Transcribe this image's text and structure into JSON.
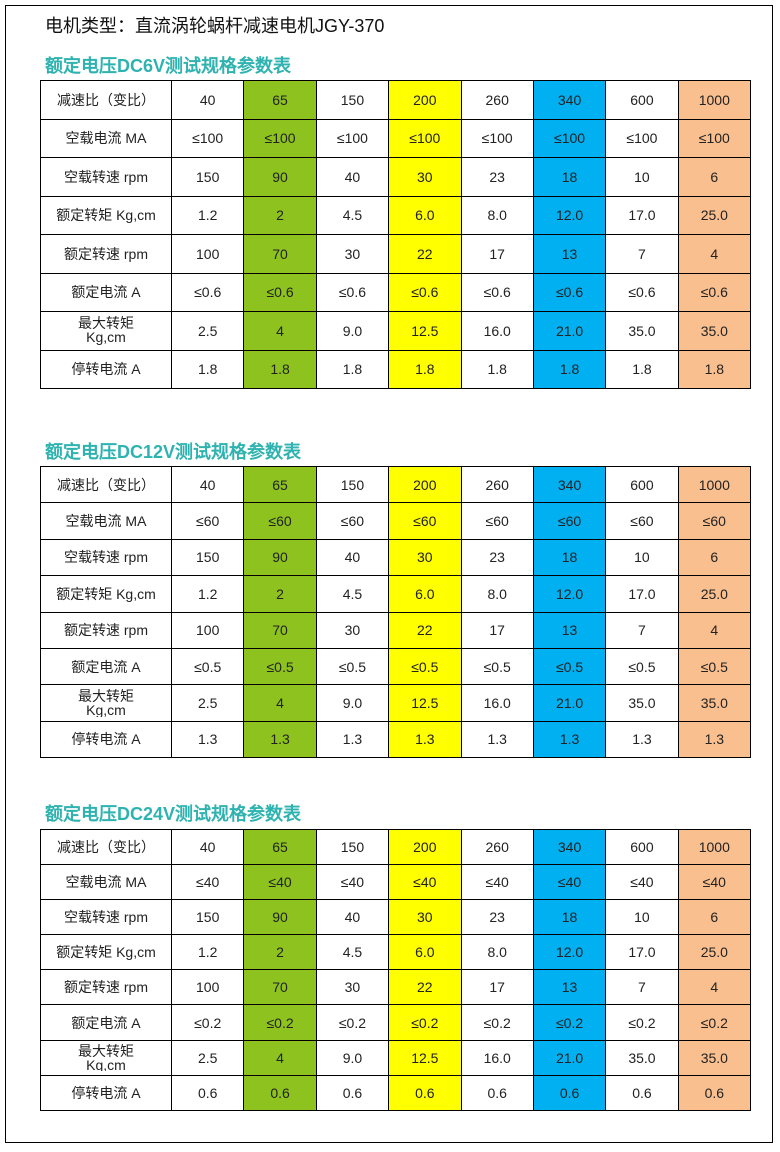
{
  "header": {
    "title": "电机类型：直流涡轮蜗杆减速电机JGY-370"
  },
  "tables": [
    {
      "title": "额定电压DC6V测试规格参数表",
      "rows": [
        [
          "减速比（变比）",
          "40",
          "65",
          "150",
          "200",
          "260",
          "340",
          "600",
          "1000"
        ],
        [
          "空载电流 MA",
          "≤100",
          "≤100",
          "≤100",
          "≤100",
          "≤100",
          "≤100",
          "≤100",
          "≤100"
        ],
        [
          "空载转速 rpm",
          "150",
          "90",
          "40",
          "30",
          "23",
          "18",
          "10",
          "6"
        ],
        [
          "额定转矩 Kg,cm",
          "1.2",
          "2",
          "4.5",
          "6.0",
          "8.0",
          "12.0",
          "17.0",
          "25.0"
        ],
        [
          "额定转速 rpm",
          "100",
          "70",
          "30",
          "22",
          "17",
          "13",
          "7",
          "4"
        ],
        [
          "额定电流  A",
          "≤0.6",
          "≤0.6",
          "≤0.6",
          "≤0.6",
          "≤0.6",
          "≤0.6",
          "≤0.6",
          "≤0.6"
        ],
        [
          "最大转矩 Kg,cm",
          "2.5",
          "4",
          "9.0",
          "12.5",
          "16.0",
          "21.0",
          "35.0",
          "35.0"
        ],
        [
          "停转电流 A",
          "1.8",
          "1.8",
          "1.8",
          "1.8",
          "1.8",
          "1.8",
          "1.8",
          "1.8"
        ]
      ]
    },
    {
      "title": "额定电压DC12V测试规格参数表",
      "rows": [
        [
          "减速比（变比）",
          "40",
          "65",
          "150",
          "200",
          "260",
          "340",
          "600",
          "1000"
        ],
        [
          "空载电流 MA",
          "≤60",
          "≤60",
          "≤60",
          "≤60",
          "≤60",
          "≤60",
          "≤60",
          "≤60"
        ],
        [
          "空载转速 rpm",
          "150",
          "90",
          "40",
          "30",
          "23",
          "18",
          "10",
          "6"
        ],
        [
          "额定转矩 Kg,cm",
          "1.2",
          "2",
          "4.5",
          "6.0",
          "8.0",
          "12.0",
          "17.0",
          "25.0"
        ],
        [
          "额定转速 rpm",
          "100",
          "70",
          "30",
          "22",
          "17",
          "13",
          "7",
          "4"
        ],
        [
          "额定电流  A",
          "≤0.5",
          "≤0.5",
          "≤0.5",
          "≤0.5",
          "≤0.5",
          "≤0.5",
          "≤0.5",
          "≤0.5"
        ],
        [
          "最大转矩 Kg,cm",
          "2.5",
          "4",
          "9.0",
          "12.5",
          "16.0",
          "21.0",
          "35.0",
          "35.0"
        ],
        [
          "停转电流 A",
          "1.3",
          "1.3",
          "1.3",
          "1.3",
          "1.3",
          "1.3",
          "1.3",
          "1.3"
        ]
      ]
    },
    {
      "title": "额定电压DC24V测试规格参数表",
      "rows": [
        [
          "减速比（变比）",
          "40",
          "65",
          "150",
          "200",
          "260",
          "340",
          "600",
          "1000"
        ],
        [
          "空载电流 MA",
          "≤40",
          "≤40",
          "≤40",
          "≤40",
          "≤40",
          "≤40",
          "≤40",
          "≤40"
        ],
        [
          "空载转速 rpm",
          "150",
          "90",
          "40",
          "30",
          "23",
          "18",
          "10",
          "6"
        ],
        [
          "额定转矩 Kg,cm",
          "1.2",
          "2",
          "4.5",
          "6.0",
          "8.0",
          "12.0",
          "17.0",
          "25.0"
        ],
        [
          "额定转速 rpm",
          "100",
          "70",
          "30",
          "22",
          "17",
          "13",
          "7",
          "4"
        ],
        [
          "额定电流  A",
          "≤0.2",
          "≤0.2",
          "≤0.2",
          "≤0.2",
          "≤0.2",
          "≤0.2",
          "≤0.2",
          "≤0.2"
        ],
        [
          "最大转矩 Kg,cm",
          "2.5",
          "4",
          "9.0",
          "12.5",
          "16.0",
          "21.0",
          "35.0",
          "35.0"
        ],
        [
          "停转电流 A",
          "0.6",
          "0.6",
          "0.6",
          "0.6",
          "0.6",
          "0.6",
          "0.6",
          "0.6"
        ]
      ]
    }
  ]
}
